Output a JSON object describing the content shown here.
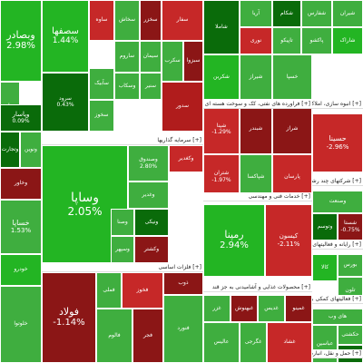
{
  "chart_data": {
    "type": "treemap",
    "colors": {
      "strong_green": "#23b523",
      "green": "#3fae3f",
      "dark_green": "#0a6b0a",
      "dark_red": "#8b1616",
      "red": "#b01c1c",
      "bright_red": "#c62828"
    },
    "sector_headers": [
      {
        "label": "[+] سرمایه گذاریها"
      },
      {
        "label": "[+] فلزات اساسی"
      },
      {
        "label": "[+] خدمات فنی و مهندسی"
      },
      {
        "label": "[+] فراورده های نفتی، کک و سوخت هسته ای"
      },
      {
        "label": "[+] انبوه سازی، املاک و مستغلات"
      },
      {
        "label": "[+] شرکتهای چند رشته"
      },
      {
        "label": "[+] محصولات غذایی و آشامیدنی به جز قند"
      },
      {
        "label": "[+] رایانه و فعالیتهای وابسته"
      },
      {
        "label": "[+] فعالیتهای کمکی به"
      },
      {
        "label": "[+] حمل و نقل، انبارداری و ارتباطات"
      }
    ],
    "tiles": [
      {
        "label": "وبصادر",
        "change": "2.98%"
      },
      {
        "label": "وبملت",
        "change": ""
      },
      {
        "label": "وتجارت",
        "change": ""
      },
      {
        "label": "وپاسار",
        "change": "0.09%"
      },
      {
        "label": "ونوین",
        "change": ""
      },
      {
        "label": "وخاور",
        "change": ""
      },
      {
        "label": "خساپا",
        "change": "1.53%"
      },
      {
        "label": "خودرو",
        "change": ""
      },
      {
        "label": "خلوتوا",
        "change": ""
      },
      {
        "label": "سصفها",
        "change": "1.44%"
      },
      {
        "label": "ساوه",
        "change": ""
      },
      {
        "label": "سخاش",
        "change": ""
      },
      {
        "label": "سخزر",
        "change": ""
      },
      {
        "label": "ساروم",
        "change": ""
      },
      {
        "label": "سآبیک",
        "change": ""
      },
      {
        "label": "سرود",
        "change": "0.43%"
      },
      {
        "label": "سیمان",
        "change": ""
      },
      {
        "label": "سخوز",
        "change": ""
      },
      {
        "label": "سفار",
        "change": ""
      },
      {
        "label": "وسکاب",
        "change": ""
      },
      {
        "label": "سنیر",
        "change": ""
      },
      {
        "label": "سکرب",
        "change": ""
      },
      {
        "label": "سبزوا",
        "change": ""
      },
      {
        "label": "سدور",
        "change": ""
      },
      {
        "label": "وساپا",
        "change": "2.05%"
      },
      {
        "label": "وصندوق",
        "change": "2.80%"
      },
      {
        "label": "وغدیر",
        "change": ""
      },
      {
        "label": "وصنا",
        "change": ""
      },
      {
        "label": "وسپهر",
        "change": ""
      },
      {
        "label": "ونیکی",
        "change": ""
      },
      {
        "label": "وکغدیر",
        "change": ""
      },
      {
        "label": "وکشتر",
        "change": ""
      },
      {
        "label": "فولاد",
        "change": "-1.14%"
      },
      {
        "label": "فملی",
        "change": ""
      },
      {
        "label": "فخوز",
        "change": ""
      },
      {
        "label": "فالوم",
        "change": ""
      },
      {
        "label": "ذوب",
        "change": ""
      },
      {
        "label": "فجر",
        "change": ""
      },
      {
        "label": "فنورد",
        "change": ""
      },
      {
        "label": "رمپنا",
        "change": "2.94%"
      },
      {
        "label": "کیسون",
        "change": "-2.11%"
      },
      {
        "label": "شپنا",
        "change": "-1.29%"
      },
      {
        "label": "شبندر",
        "change": ""
      },
      {
        "label": "شراز",
        "change": ""
      },
      {
        "label": "شتران",
        "change": "-1.97%"
      },
      {
        "label": "شپاکسا",
        "change": ""
      },
      {
        "label": "پارسان",
        "change": ""
      },
      {
        "label": "شکربن",
        "change": ""
      },
      {
        "label": "شیراز",
        "change": ""
      },
      {
        "label": "شاملا",
        "change": ""
      },
      {
        "label": "آریا",
        "change": ""
      },
      {
        "label": "شکام",
        "change": ""
      },
      {
        "label": "شفارس",
        "change": ""
      },
      {
        "label": "شیران",
        "change": ""
      },
      {
        "label": "نوری",
        "change": ""
      },
      {
        "label": "تاپیکو",
        "change": ""
      },
      {
        "label": "پاکشو",
        "change": ""
      },
      {
        "label": "شاراک",
        "change": ""
      },
      {
        "label": "خسپا",
        "change": ""
      },
      {
        "label": "حسینا",
        "change": "-2.96%"
      },
      {
        "label": "وصنعت",
        "change": ""
      },
      {
        "label": "وتوسم",
        "change": ""
      },
      {
        "label": "شستا",
        "change": "-0.75%"
      },
      {
        "label": "کالا",
        "change": ""
      },
      {
        "label": "بورس",
        "change": ""
      },
      {
        "label": "تلون",
        "change": ""
      },
      {
        "label": "های وب",
        "change": ""
      },
      {
        "label": "غزر",
        "change": ""
      },
      {
        "label": "غبهنوش",
        "change": ""
      },
      {
        "label": "عالیس",
        "change": ""
      },
      {
        "label": "غدیس",
        "change": ""
      },
      {
        "label": "غمینو",
        "change": ""
      },
      {
        "label": "غگرجی",
        "change": ""
      },
      {
        "label": "غشاد",
        "change": ""
      },
      {
        "label": "عباسین",
        "change": ""
      },
      {
        "label": "حکشتی",
        "change": ""
      },
      {
        "label": "آرت",
        "change": ""
      }
    ]
  }
}
